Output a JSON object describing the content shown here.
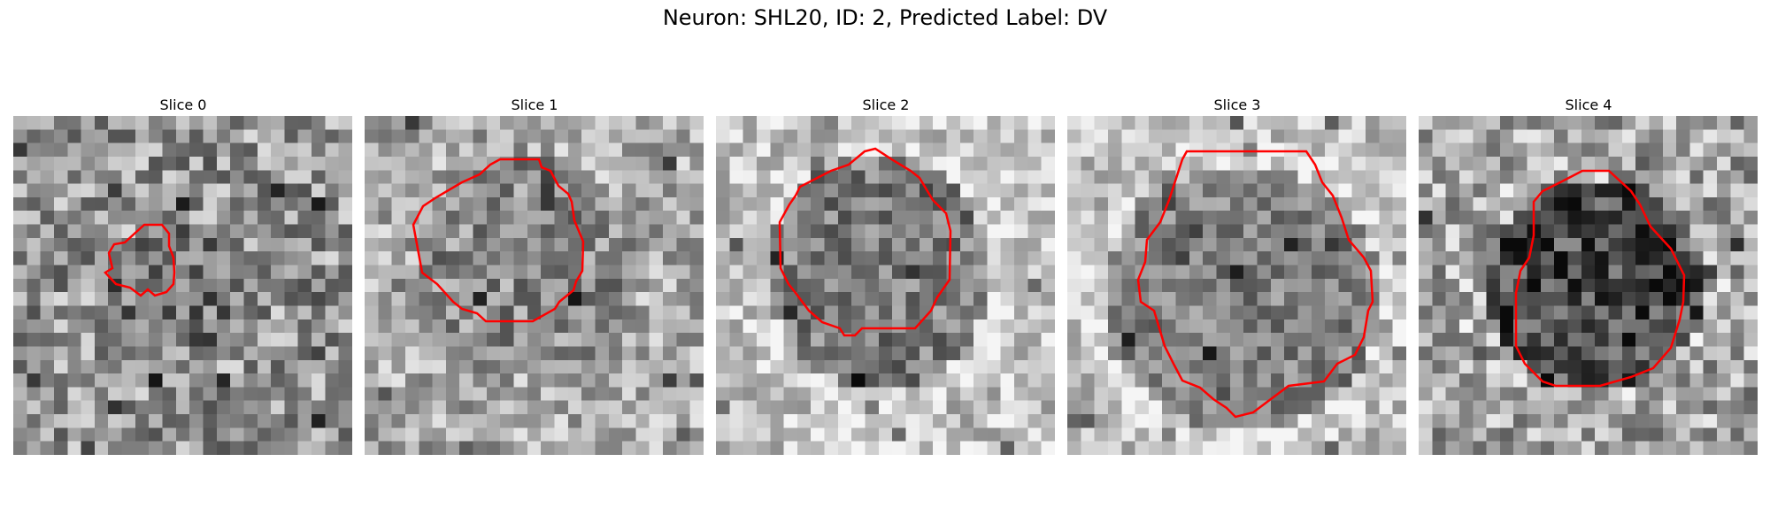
{
  "title": "Neuron: SHL20, ID: 2, Predicted Label: DV",
  "contour_color": "#ff0000",
  "slices": [
    {
      "label": "Slice 0"
    },
    {
      "label": "Slice 1"
    },
    {
      "label": "Slice 2"
    },
    {
      "label": "Slice 3"
    },
    {
      "label": "Slice 4"
    }
  ]
}
